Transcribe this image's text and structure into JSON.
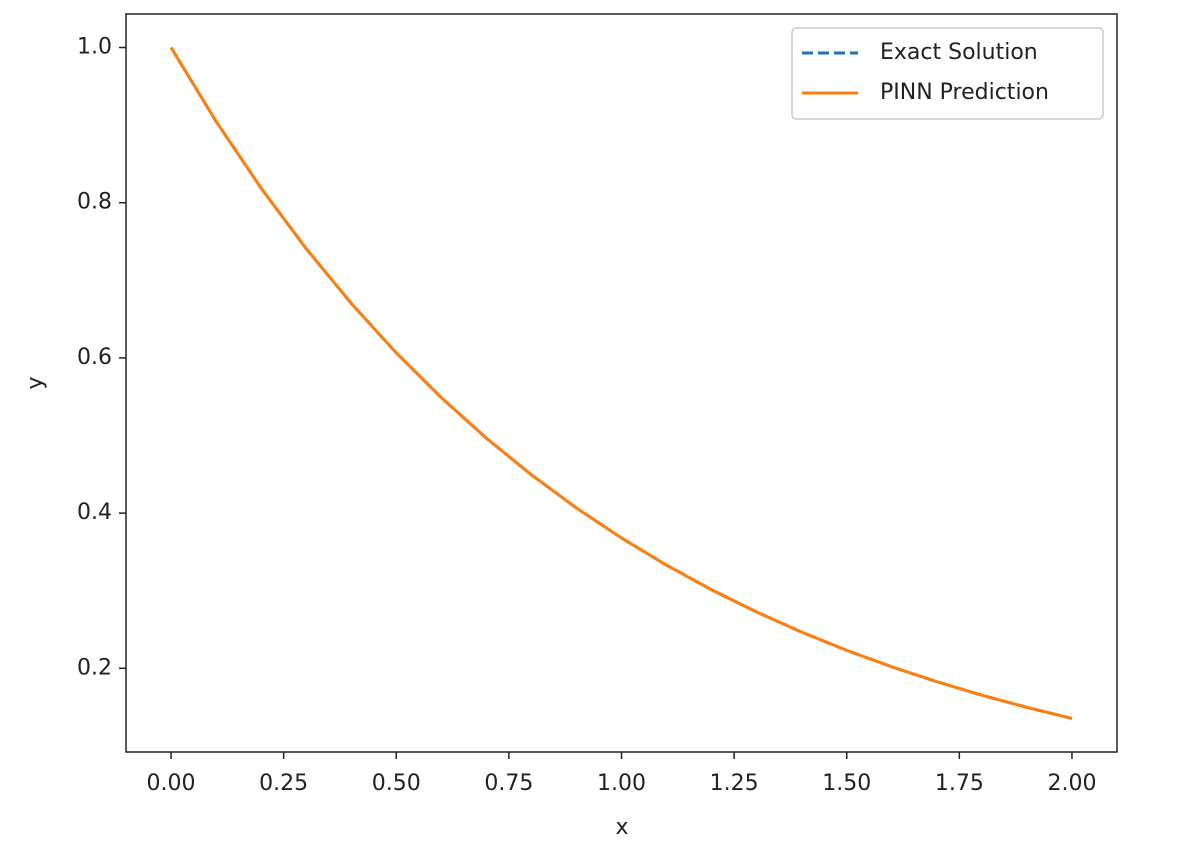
{
  "chart_data": {
    "type": "line",
    "x_label": "x",
    "y_label": "y",
    "x": [
      0,
      0.1,
      0.2,
      0.3,
      0.4,
      0.5,
      0.6,
      0.7,
      0.8,
      0.9,
      1.0,
      1.1,
      1.2,
      1.3,
      1.4,
      1.5,
      1.6,
      1.7,
      1.8,
      1.9,
      2.0
    ],
    "series": [
      {
        "name": "Exact Solution",
        "color": "#1f77b4",
        "line_style": "dashed",
        "values": [
          1,
          0.9048,
          0.8187,
          0.7408,
          0.6703,
          0.6065,
          0.5488,
          0.4966,
          0.4493,
          0.4066,
          0.3679,
          0.3329,
          0.3012,
          0.2725,
          0.2466,
          0.2231,
          0.2019,
          0.1827,
          0.1653,
          0.1496,
          0.1353
        ]
      },
      {
        "name": "PINN Prediction",
        "color": "#ff7f0e",
        "line_style": "solid",
        "values": [
          1,
          0.9048,
          0.8187,
          0.7408,
          0.6703,
          0.6065,
          0.5488,
          0.4966,
          0.4493,
          0.4066,
          0.3679,
          0.3329,
          0.3012,
          0.2725,
          0.2466,
          0.2231,
          0.2019,
          0.1827,
          0.1653,
          0.1496,
          0.1353
        ]
      }
    ],
    "xlim": [
      -0.1,
      2.1
    ],
    "ylim": [
      0.0921,
      1.0432
    ],
    "xticks": [
      {
        "value": 0,
        "label": "0.00"
      },
      {
        "value": 0.25,
        "label": "0.25"
      },
      {
        "value": 0.5,
        "label": "0.50"
      },
      {
        "value": 0.75,
        "label": "0.75"
      },
      {
        "value": 1,
        "label": "1.00"
      },
      {
        "value": 1.25,
        "label": "1.25"
      },
      {
        "value": 1.5,
        "label": "1.50"
      },
      {
        "value": 1.75,
        "label": "1.75"
      },
      {
        "value": 2,
        "label": "2.00"
      }
    ],
    "yticks": [
      0.2,
      0.4,
      0.6,
      0.8,
      {
        "value": 1,
        "label": "1.0"
      }
    ],
    "grid": false,
    "legend": "upper right"
  }
}
